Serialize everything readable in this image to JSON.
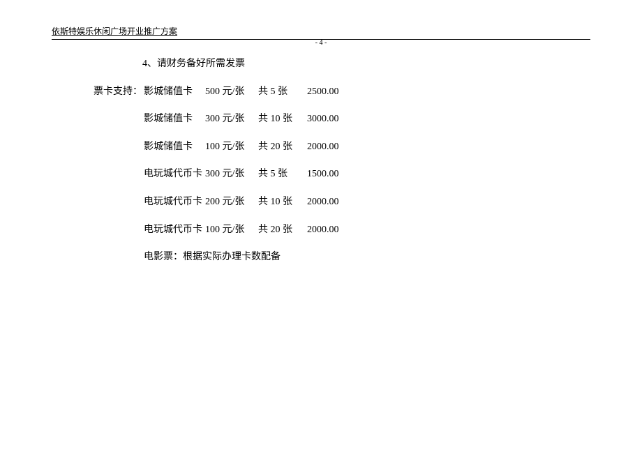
{
  "header": {
    "title": "依斯特娱乐休闲广场开业推广方案",
    "page_number": "- 4 -"
  },
  "content": {
    "item4": "4、请财务备好所需发票",
    "card_support_label": "票卡支持：",
    "cards": [
      {
        "name": "影城储值卡",
        "price": "500 元/张",
        "qty": "共 5 张",
        "total": "2500.00"
      },
      {
        "name": "影城储值卡",
        "price": "300 元/张",
        "qty": "共 10 张",
        "total": "3000.00"
      },
      {
        "name": "影城储值卡",
        "price": "100 元/张",
        "qty": "共 20 张",
        "total": "2000.00"
      },
      {
        "name": "电玩城代币卡",
        "price": "300 元/张",
        "qty": "共 5 张",
        "total": "1500.00"
      },
      {
        "name": "电玩城代币卡",
        "price": "200 元/张",
        "qty": "共 10 张",
        "total": "2000.00"
      },
      {
        "name": "电玩城代币卡",
        "price": "100 元/张",
        "qty": "共 20 张",
        "total": "2000.00"
      }
    ],
    "movie_ticket": "电影票：根据实际办理卡数配备"
  }
}
